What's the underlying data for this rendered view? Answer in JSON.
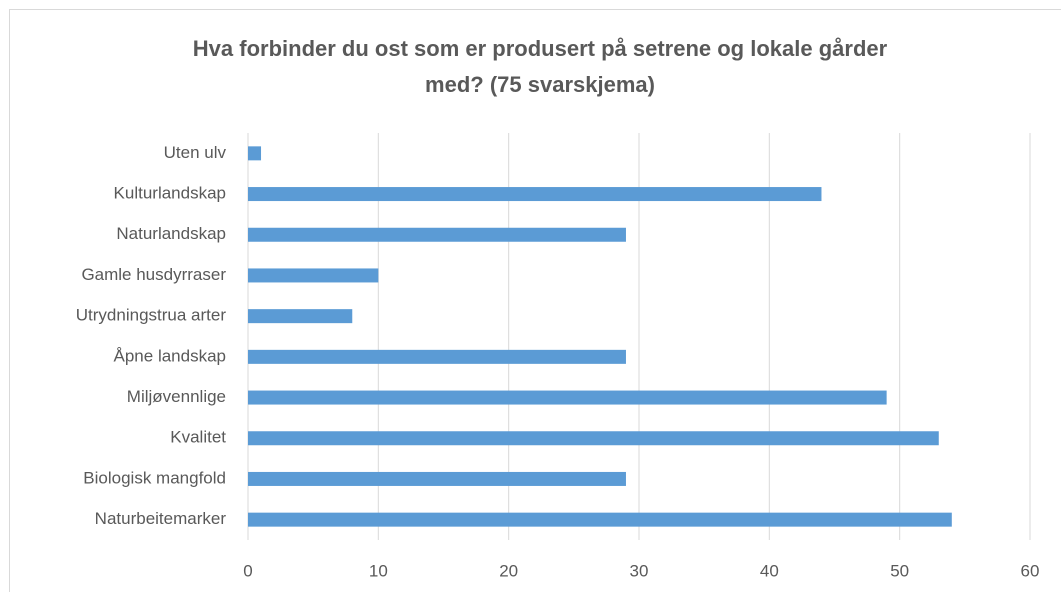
{
  "chart_data": {
    "type": "hbar",
    "title": [
      "Hva forbinder du ost som er produsert på setrene og lokale gårder",
      "med? (75 svarskjema)"
    ],
    "categories": [
      "Uten ulv",
      "Kulturlandskap",
      "Naturlandskap",
      "Gamle husdyrraser",
      "Utrydningstrua arter",
      "Åpne landskap",
      "Miljøvennlige",
      "Kvalitet",
      "Biologisk mangfold",
      "Naturbeitemarker"
    ],
    "values": [
      1,
      44,
      29,
      10,
      8,
      29,
      49,
      53,
      29,
      54
    ],
    "color": "#5b9bd5",
    "xlim": [
      0,
      60
    ],
    "xticks": [
      0,
      10,
      20,
      30,
      40,
      50,
      60
    ],
    "grid": true
  }
}
